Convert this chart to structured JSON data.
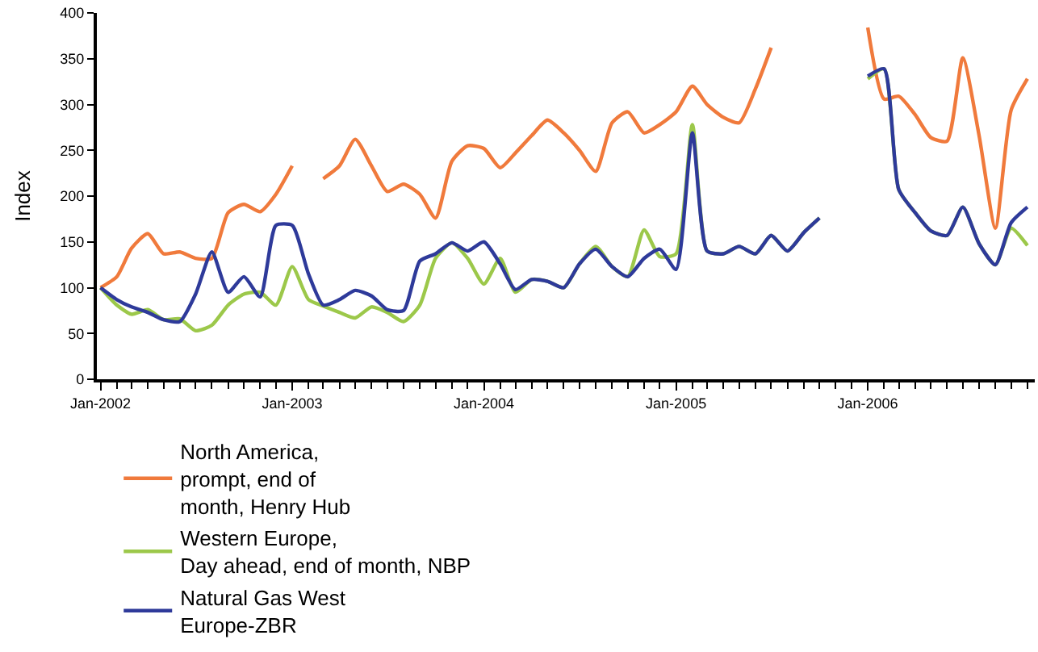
{
  "chart_data": {
    "type": "line",
    "ylabel": "Index",
    "x": [
      "2002-01",
      "2002-02",
      "2002-03",
      "2002-04",
      "2002-05",
      "2002-06",
      "2002-07",
      "2002-08",
      "2002-09",
      "2002-10",
      "2002-11",
      "2002-12",
      "2003-01",
      "2003-02",
      "2003-03",
      "2003-04",
      "2003-05",
      "2003-06",
      "2003-07",
      "2003-08",
      "2003-09",
      "2003-10",
      "2003-11",
      "2003-12",
      "2004-01",
      "2004-02",
      "2004-03",
      "2004-04",
      "2004-05",
      "2004-06",
      "2004-07",
      "2004-08",
      "2004-09",
      "2004-10",
      "2004-11",
      "2004-12",
      "2005-01",
      "2005-02",
      "2005-03",
      "2005-04",
      "2005-05",
      "2005-06",
      "2005-07",
      "2005-08",
      "2005-09",
      "2005-10",
      "2005-11",
      "2005-12",
      "2006-01",
      "2006-02",
      "2006-03",
      "2006-04",
      "2006-05",
      "2006-06",
      "2006-07",
      "2006-08",
      "2006-09",
      "2006-10",
      "2006-11"
    ],
    "series": [
      {
        "name": "North America,\nprompt, end of\nmonth, Henry Hub",
        "color": "#f07a3c",
        "values": [
          100,
          112,
          143,
          159,
          137,
          139,
          132,
          132,
          182,
          191,
          183,
          202,
          233,
          null,
          219,
          233,
          262,
          233,
          205,
          213,
          202,
          176,
          238,
          255,
          252,
          231,
          247,
          266,
          283,
          269,
          250,
          227,
          280,
          292,
          269,
          278,
          292,
          320,
          300,
          286,
          280,
          317,
          362,
          null,
          null,
          null,
          null,
          null,
          384,
          306,
          309,
          289,
          264,
          260,
          351,
          266,
          165,
          294,
          328
        ]
      },
      {
        "name": "Western Europe,\nDay ahead, end of month, NBP",
        "color": "#9cc84a",
        "values": [
          100,
          81,
          71,
          76,
          65,
          66,
          53,
          59,
          81,
          93,
          95,
          81,
          123,
          87,
          80,
          73,
          67,
          79,
          73,
          63,
          81,
          132,
          149,
          132,
          104,
          132,
          95,
          109,
          107,
          100,
          126,
          145,
          123,
          112,
          163,
          134,
          137,
          278,
          140,
          137,
          145,
          137,
          157,
          140,
          160,
          176,
          null,
          null,
          328,
          339,
          207,
          182,
          162,
          157,
          188,
          148,
          125,
          165,
          146
        ]
      },
      {
        "name": "Natural Gas West\nEurope-ZBR",
        "color": "#2e3a9a",
        "values": [
          100,
          87,
          79,
          73,
          65,
          63,
          93,
          139,
          95,
          112,
          90,
          168,
          168,
          115,
          81,
          87,
          97,
          91,
          76,
          75,
          129,
          137,
          149,
          140,
          150,
          126,
          98,
          109,
          107,
          100,
          126,
          142,
          123,
          112,
          132,
          142,
          120,
          269,
          140,
          137,
          145,
          137,
          157,
          140,
          160,
          176,
          null,
          null,
          331,
          339,
          207,
          182,
          162,
          157,
          188,
          148,
          125,
          171,
          188
        ]
      }
    ],
    "xlim": [
      "2001-12-25",
      "2006-11-15"
    ],
    "xticks": [
      {
        "value": "2002-01-01",
        "label": "Jan-2002"
      },
      {
        "value": "2003-01-01",
        "label": "Jan-2003"
      },
      {
        "value": "2004-01-01",
        "label": "Jan-2004"
      },
      {
        "value": "2005-01-01",
        "label": "Jan-2005"
      },
      {
        "value": "2006-01-01",
        "label": "Jan-2006"
      }
    ],
    "ylim": [
      0,
      400
    ],
    "yticks": [
      0,
      50,
      100,
      150,
      200,
      250,
      300,
      350,
      400
    ],
    "legend": "bottom",
    "marker": "none",
    "line_style": "solid"
  }
}
